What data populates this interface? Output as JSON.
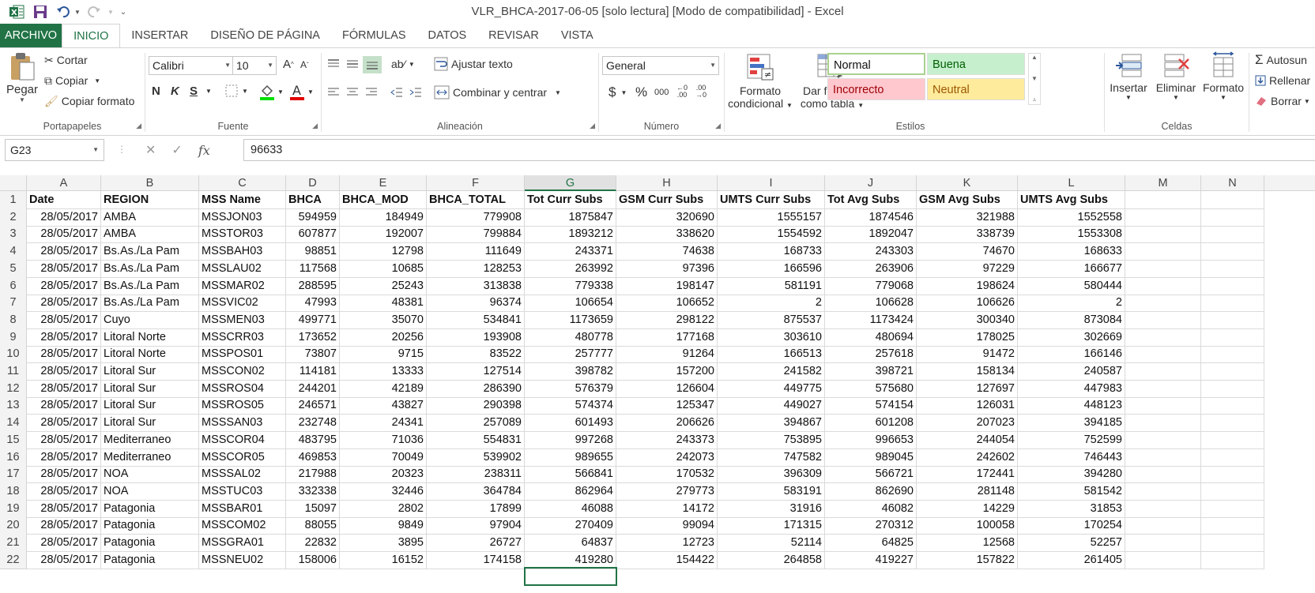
{
  "window": {
    "title": "VLR_BHCA-2017-06-05  [solo lectura]  [Modo de compatibilidad] - Excel",
    "colors": {
      "brand": "#217346"
    }
  },
  "tabs": [
    "ARCHIVO",
    "INICIO",
    "INSERTAR",
    "DISEÑO DE PÁGINA",
    "FÓRMULAS",
    "DATOS",
    "REVISAR",
    "VISTA"
  ],
  "ribbon": {
    "clipboard": {
      "label": "Portapapeles",
      "paste": "Pegar",
      "cut": "Cortar",
      "copy": "Copiar",
      "format_painter": "Copiar formato"
    },
    "font": {
      "label": "Fuente",
      "name": "Calibri",
      "size": "10",
      "bold": "N",
      "italic": "K",
      "underline": "S"
    },
    "alignment": {
      "label": "Alineación",
      "wrap": "Ajustar texto",
      "merge": "Combinar y centrar"
    },
    "number": {
      "label": "Número",
      "format": "General",
      "currency": "$",
      "percent": "%",
      "thousands": "000"
    },
    "styles": {
      "label": "Estilos",
      "conditional_1": "Formato",
      "conditional_2": "condicional",
      "table_1": "Dar formato",
      "table_2": "como tabla",
      "normal": "Normal",
      "good": "Buena",
      "bad": "Incorrecto",
      "neutral": "Neutral"
    },
    "cells": {
      "label": "Celdas",
      "insert": "Insertar",
      "delete": "Eliminar",
      "format": "Formato"
    },
    "editing": {
      "autosum": "Autosun",
      "fill": "Rellenar",
      "clear": "Borrar"
    }
  },
  "formula_bar": {
    "name_box": "G23",
    "value": "96633"
  },
  "sheet": {
    "column_letters": [
      "A",
      "B",
      "C",
      "D",
      "E",
      "F",
      "G",
      "H",
      "I",
      "J",
      "K",
      "L",
      "M",
      "N"
    ],
    "selected_column": "G",
    "header_row": [
      "Date",
      "REGION",
      "MSS Name",
      "BHCA",
      "BHCA_MOD",
      "BHCA_TOTAL",
      "Tot Curr Subs",
      "GSM Curr Subs",
      "UMTS Curr Subs",
      "Tot Avg Subs",
      "GSM Avg Subs",
      "UMTS Avg Subs"
    ],
    "rows": [
      [
        "28/05/2017",
        "AMBA",
        "MSSJON03",
        "594959",
        "184949",
        "779908",
        "1875847",
        "320690",
        "1555157",
        "1874546",
        "321988",
        "1552558"
      ],
      [
        "28/05/2017",
        "AMBA",
        "MSSTOR03",
        "607877",
        "192007",
        "799884",
        "1893212",
        "338620",
        "1554592",
        "1892047",
        "338739",
        "1553308"
      ],
      [
        "28/05/2017",
        "Bs.As./La Pam",
        "MSSBAH03",
        "98851",
        "12798",
        "111649",
        "243371",
        "74638",
        "168733",
        "243303",
        "74670",
        "168633"
      ],
      [
        "28/05/2017",
        "Bs.As./La Pam",
        "MSSLAU02",
        "117568",
        "10685",
        "128253",
        "263992",
        "97396",
        "166596",
        "263906",
        "97229",
        "166677"
      ],
      [
        "28/05/2017",
        "Bs.As./La Pam",
        "MSSMAR02",
        "288595",
        "25243",
        "313838",
        "779338",
        "198147",
        "581191",
        "779068",
        "198624",
        "580444"
      ],
      [
        "28/05/2017",
        "Bs.As./La Pam",
        "MSSVIC02",
        "47993",
        "48381",
        "96374",
        "106654",
        "106652",
        "2",
        "106628",
        "106626",
        "2"
      ],
      [
        "28/05/2017",
        "Cuyo",
        "MSSMEN03",
        "499771",
        "35070",
        "534841",
        "1173659",
        "298122",
        "875537",
        "1173424",
        "300340",
        "873084"
      ],
      [
        "28/05/2017",
        "Litoral Norte",
        "MSSCRR03",
        "173652",
        "20256",
        "193908",
        "480778",
        "177168",
        "303610",
        "480694",
        "178025",
        "302669"
      ],
      [
        "28/05/2017",
        "Litoral Norte",
        "MSSPOS01",
        "73807",
        "9715",
        "83522",
        "257777",
        "91264",
        "166513",
        "257618",
        "91472",
        "166146"
      ],
      [
        "28/05/2017",
        "Litoral Sur",
        "MSSCON02",
        "114181",
        "13333",
        "127514",
        "398782",
        "157200",
        "241582",
        "398721",
        "158134",
        "240587"
      ],
      [
        "28/05/2017",
        "Litoral Sur",
        "MSSROS04",
        "244201",
        "42189",
        "286390",
        "576379",
        "126604",
        "449775",
        "575680",
        "127697",
        "447983"
      ],
      [
        "28/05/2017",
        "Litoral Sur",
        "MSSROS05",
        "246571",
        "43827",
        "290398",
        "574374",
        "125347",
        "449027",
        "574154",
        "126031",
        "448123"
      ],
      [
        "28/05/2017",
        "Litoral Sur",
        "MSSSAN03",
        "232748",
        "24341",
        "257089",
        "601493",
        "206626",
        "394867",
        "601208",
        "207023",
        "394185"
      ],
      [
        "28/05/2017",
        "Mediterraneo",
        "MSSCOR04",
        "483795",
        "71036",
        "554831",
        "997268",
        "243373",
        "753895",
        "996653",
        "244054",
        "752599"
      ],
      [
        "28/05/2017",
        "Mediterraneo",
        "MSSCOR05",
        "469853",
        "70049",
        "539902",
        "989655",
        "242073",
        "747582",
        "989045",
        "242602",
        "746443"
      ],
      [
        "28/05/2017",
        "NOA",
        "MSSSAL02",
        "217988",
        "20323",
        "238311",
        "566841",
        "170532",
        "396309",
        "566721",
        "172441",
        "394280"
      ],
      [
        "28/05/2017",
        "NOA",
        "MSSTUC03",
        "332338",
        "32446",
        "364784",
        "862964",
        "279773",
        "583191",
        "862690",
        "281148",
        "581542"
      ],
      [
        "28/05/2017",
        "Patagonia",
        "MSSBAR01",
        "15097",
        "2802",
        "17899",
        "46088",
        "14172",
        "31916",
        "46082",
        "14229",
        "31853"
      ],
      [
        "28/05/2017",
        "Patagonia",
        "MSSCOM02",
        "88055",
        "9849",
        "97904",
        "270409",
        "99094",
        "171315",
        "270312",
        "100058",
        "170254"
      ],
      [
        "28/05/2017",
        "Patagonia",
        "MSSGRA01",
        "22832",
        "3895",
        "26727",
        "64837",
        "12723",
        "52114",
        "64825",
        "12568",
        "52257"
      ],
      [
        "28/05/2017",
        "Patagonia",
        "MSSNEU02",
        "158006",
        "16152",
        "174158",
        "419280",
        "154422",
        "264858",
        "419227",
        "157822",
        "261405"
      ]
    ]
  }
}
